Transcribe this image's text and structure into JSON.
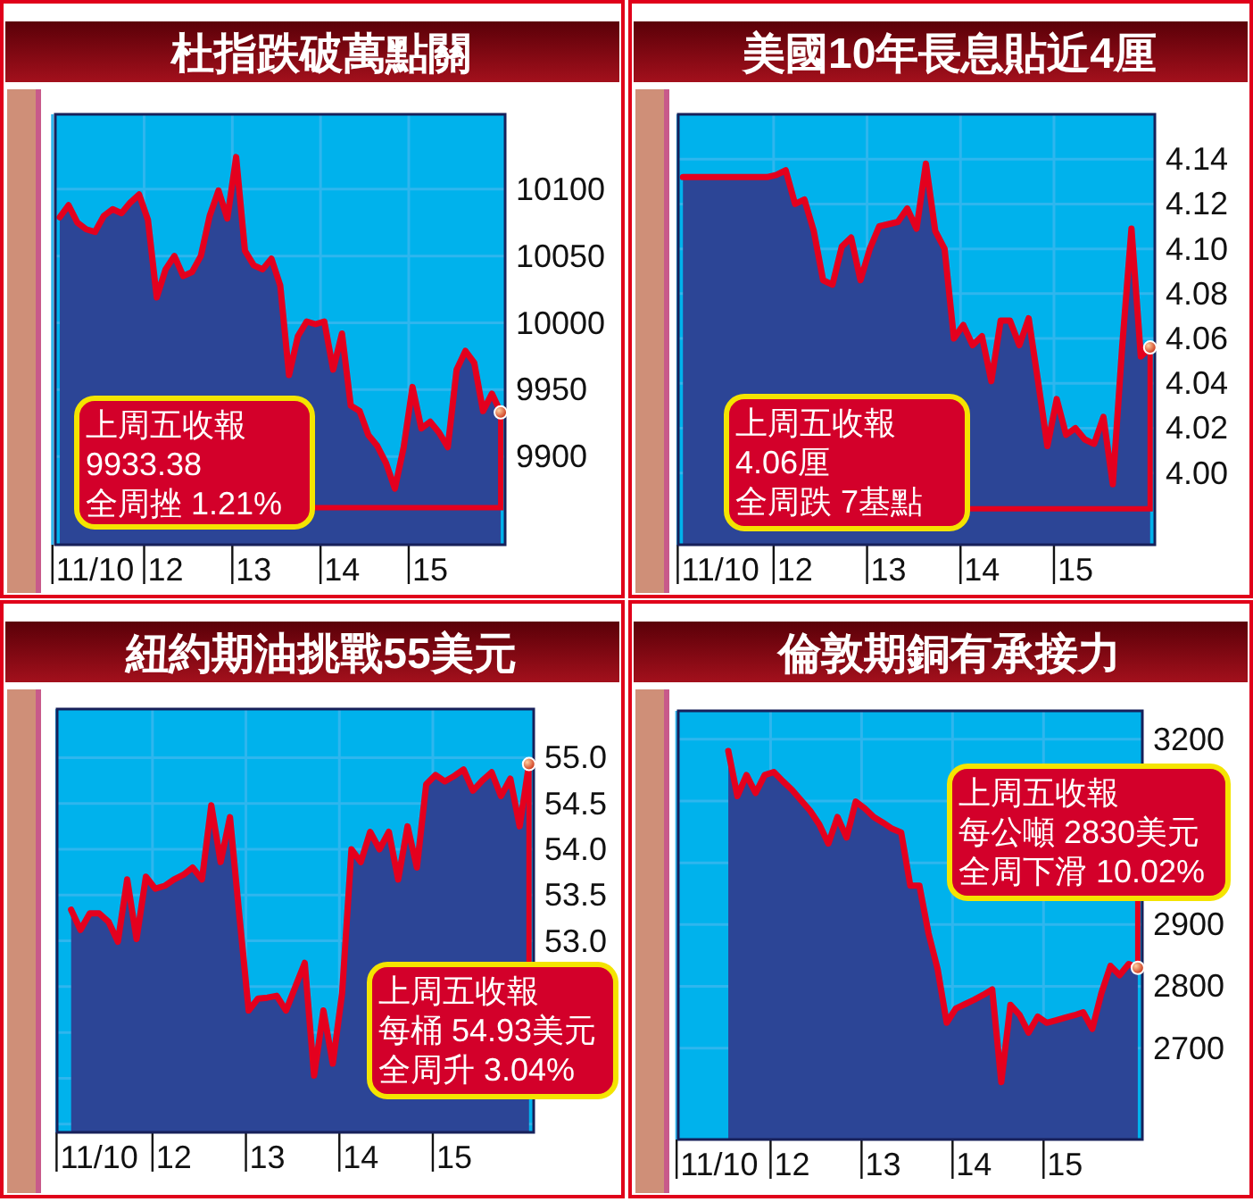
{
  "chart_data": [
    {
      "type": "area",
      "title": "杜指跌破萬點關",
      "ylim": [
        9834,
        10156
      ],
      "grid": true,
      "categories": [
        null,
        null,
        null,
        null,
        "11/10",
        null,
        null,
        null,
        null,
        null,
        null,
        null,
        "12",
        null,
        null,
        null,
        null,
        null,
        null,
        null,
        null,
        null,
        "13",
        null,
        null,
        null,
        null,
        null,
        null,
        null,
        null,
        null,
        "14",
        null,
        null,
        null,
        null,
        null,
        null,
        null,
        null,
        null,
        "15",
        null,
        null,
        null,
        null,
        null,
        null,
        null,
        null
      ],
      "yticks": [
        9900,
        9950,
        10000,
        10050,
        10100
      ],
      "series": [
        {
          "color": "#2c4596",
          "values": [
            10079,
            10088,
            10075,
            10070,
            10068,
            10080,
            10085,
            10082,
            10090,
            10096,
            10077,
            10019,
            10040,
            10050,
            10035,
            10038,
            10050,
            10080,
            10099,
            10078,
            10124,
            10054,
            10043,
            10040,
            10048,
            10028,
            9961,
            9990,
            10001,
            9999,
            10001,
            9965,
            9992,
            9938,
            9934,
            9916,
            9908,
            9895,
            9876,
            9907,
            9952,
            9921,
            9926,
            9918,
            9907,
            9965,
            9979,
            9970,
            9934,
            9947,
            9933
          ]
        }
      ],
      "annotations": [
        "上周五收報",
        "9933.38",
        "全周挫 1.21%"
      ]
    },
    {
      "type": "area",
      "title": "美國10年長息貼近4厘",
      "ylim": [
        3.968,
        4.16
      ],
      "grid": true,
      "categories": [
        null,
        null,
        null,
        null,
        "11/10",
        null,
        null,
        null,
        null,
        null,
        null,
        null,
        "12",
        null,
        null,
        null,
        null,
        null,
        null,
        null,
        null,
        null,
        "13",
        null,
        null,
        null,
        null,
        null,
        null,
        null,
        null,
        null,
        "14",
        null,
        null,
        null,
        null,
        null,
        null,
        null,
        null,
        null,
        "15",
        null,
        null,
        null,
        null,
        null,
        null,
        null,
        null
      ],
      "yticks": [
        {
          "value": 4.0,
          "label": "4.00"
        },
        {
          "value": 4.02,
          "label": "4.02"
        },
        {
          "value": 4.04,
          "label": "4.04"
        },
        {
          "value": 4.06,
          "label": "4.06"
        },
        {
          "value": 4.08,
          "label": "4.08"
        },
        {
          "value": 4.1,
          "label": "4.10"
        },
        {
          "value": 4.12,
          "label": "4.12"
        },
        {
          "value": 4.14,
          "label": "4.14"
        }
      ],
      "series": [
        {
          "color": "#2c4596",
          "values": [
            4.132,
            4.132,
            4.132,
            4.132,
            4.132,
            4.132,
            4.132,
            4.132,
            4.132,
            4.132,
            4.133,
            4.135,
            4.12,
            4.122,
            4.108,
            4.086,
            4.084,
            4.101,
            4.105,
            4.086,
            4.1,
            4.11,
            4.111,
            4.112,
            4.118,
            4.109,
            4.138,
            4.108,
            4.1,
            4.06,
            4.066,
            4.057,
            4.061,
            4.041,
            4.068,
            4.068,
            4.057,
            4.069,
            4.041,
            4.012,
            4.033,
            4.017,
            4.02,
            4.015,
            4.013,
            4.025,
            3.995,
            4.056,
            4.109,
            4.052,
            4.056
          ]
        }
      ],
      "annotations": [
        "上周五收報",
        "4.06厘",
        "全周跌 7基點"
      ]
    },
    {
      "type": "area",
      "title": "紐約期油挑戰55美元",
      "ylim": [
        50.91,
        55.53
      ],
      "grid": true,
      "categories": [
        null,
        null,
        null,
        null,
        "11/10",
        null,
        null,
        null,
        null,
        null,
        null,
        null,
        "12",
        null,
        null,
        null,
        null,
        null,
        null,
        null,
        null,
        null,
        "13",
        null,
        null,
        null,
        null,
        null,
        null,
        null,
        null,
        null,
        "14",
        null,
        null,
        null,
        null,
        null,
        null,
        null,
        null,
        null,
        "15",
        null,
        null,
        null,
        null,
        null,
        null,
        null,
        null
      ],
      "yticks": [
        {
          "value": 51,
          "label": null
        },
        {
          "value": 51.5,
          "label": null
        },
        {
          "value": 52,
          "label": null
        },
        {
          "value": 52.5,
          "label": null
        },
        {
          "value": 53,
          "label": "53.0"
        },
        53.5,
        {
          "value": 54,
          "label": "54.0"
        },
        54.5,
        {
          "value": 55,
          "label": "55.0"
        }
      ],
      "series": [
        {
          "color": "#2c4596",
          "values": [
            null,
            53.34,
            53.12,
            53.3,
            53.3,
            53.21,
            52.99,
            53.67,
            53.02,
            53.7,
            53.57,
            53.6,
            53.67,
            53.72,
            53.8,
            53.67,
            54.48,
            53.86,
            54.35,
            53.28,
            52.24,
            52.37,
            52.38,
            52.4,
            52.24,
            52.5,
            52.76,
            51.53,
            52.24,
            51.66,
            52.43,
            54.0,
            53.86,
            54.19,
            54.0,
            54.19,
            53.67,
            54.25,
            53.8,
            54.71,
            54.81,
            54.74,
            54.8,
            54.87,
            54.64,
            54.75,
            54.84,
            54.58,
            54.77,
            54.25,
            54.93
          ]
        }
      ],
      "annotations": [
        "上周五收報",
        "每桶 54.93美元",
        "全周升 3.04%"
      ]
    },
    {
      "type": "area",
      "title": "倫敦期銅有承接力",
      "ylim": [
        2552,
        3246
      ],
      "grid": true,
      "categories": [
        null,
        null,
        null,
        null,
        "11/10",
        null,
        null,
        null,
        null,
        null,
        null,
        null,
        "12",
        null,
        null,
        null,
        null,
        null,
        null,
        null,
        null,
        null,
        "13",
        null,
        null,
        null,
        null,
        null,
        null,
        null,
        null,
        null,
        "14",
        null,
        null,
        null,
        null,
        null,
        null,
        null,
        null,
        null,
        "15",
        null,
        null,
        null,
        null,
        null,
        null,
        null,
        null
      ],
      "yticks": [
        2700,
        2800,
        2900,
        {
          "value": 3000,
          "label": null
        },
        {
          "value": 3100,
          "label": null
        },
        3200
      ],
      "series": [
        {
          "color": "#2c4596",
          "values": [
            null,
            null,
            null,
            null,
            null,
            3181,
            3108,
            3142,
            3113,
            3142,
            3147,
            3132,
            3118,
            3101,
            3084,
            3062,
            3031,
            3074,
            3041,
            3099,
            3088,
            3074,
            3065,
            3055,
            3049,
            2963,
            2963,
            2886,
            2828,
            2741,
            2764,
            2771,
            2778,
            2786,
            2795,
            2645,
            2770,
            2754,
            2725,
            2751,
            2741,
            2745,
            2749,
            2753,
            2758,
            2731,
            2789,
            2833,
            2818,
            2836,
            2830
          ]
        }
      ],
      "annotations": [
        "上周五收報",
        "每公噸 2830美元",
        "全周下滑 10.02%"
      ]
    }
  ]
}
